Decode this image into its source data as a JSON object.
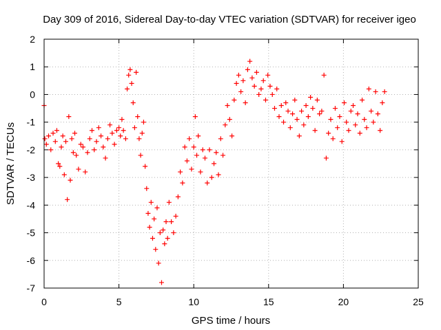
{
  "chart_data": {
    "type": "scatter",
    "title": "Day 309 of 2016, Sidereal Day-to-day VTEC variation (SDTVAR) for receiver igeo",
    "xlabel": "GPS time / hours",
    "ylabel": "SDTVAR / TECUs",
    "xlim": [
      0,
      25
    ],
    "ylim": [
      -7,
      2
    ],
    "xticks": [
      0,
      5,
      10,
      15,
      20,
      25
    ],
    "yticks": [
      -7,
      -6,
      -5,
      -4,
      -3,
      -2,
      -1,
      0,
      1,
      2
    ],
    "grid": true,
    "marker": "plus",
    "color": "#ff0000",
    "series": [
      {
        "name": "SDTVAR",
        "x": [
          0.0,
          0.05,
          0.15,
          0.3,
          0.45,
          0.6,
          0.75,
          0.85,
          0.95,
          1.05,
          1.15,
          1.25,
          1.35,
          1.45,
          1.55,
          1.65,
          1.75,
          1.85,
          1.95,
          2.05,
          2.15,
          2.3,
          2.45,
          2.6,
          2.75,
          2.9,
          3.05,
          3.2,
          3.35,
          3.5,
          3.65,
          3.8,
          3.95,
          4.1,
          4.25,
          4.4,
          4.55,
          4.7,
          4.85,
          5.0,
          5.1,
          5.2,
          5.3,
          5.45,
          5.55,
          5.65,
          5.75,
          5.85,
          5.95,
          6.05,
          6.15,
          6.25,
          6.35,
          6.45,
          6.55,
          6.65,
          6.75,
          6.85,
          6.95,
          7.05,
          7.15,
          7.25,
          7.35,
          7.45,
          7.55,
          7.65,
          7.75,
          7.85,
          7.95,
          8.05,
          8.15,
          8.25,
          8.35,
          8.5,
          8.65,
          8.8,
          8.95,
          9.1,
          9.25,
          9.4,
          9.55,
          9.7,
          9.85,
          10.0,
          10.1,
          10.2,
          10.3,
          10.45,
          10.6,
          10.75,
          10.9,
          11.05,
          11.2,
          11.35,
          11.5,
          11.65,
          11.8,
          11.95,
          12.1,
          12.25,
          12.4,
          12.55,
          12.7,
          12.85,
          13.0,
          13.15,
          13.3,
          13.45,
          13.6,
          13.75,
          13.9,
          14.05,
          14.2,
          14.35,
          14.5,
          14.65,
          14.8,
          14.95,
          15.1,
          15.25,
          15.4,
          15.55,
          15.7,
          15.85,
          16.0,
          16.15,
          16.3,
          16.45,
          16.6,
          16.75,
          16.9,
          17.05,
          17.2,
          17.35,
          17.5,
          17.65,
          17.8,
          17.95,
          18.1,
          18.25,
          18.4,
          18.55,
          18.7,
          18.85,
          19.0,
          19.15,
          19.3,
          19.45,
          19.6,
          19.75,
          19.9,
          20.05,
          20.2,
          20.35,
          20.5,
          20.65,
          20.8,
          20.95,
          21.1,
          21.25,
          21.4,
          21.55,
          21.7,
          21.85,
          22.0,
          22.15,
          22.3,
          22.45,
          22.6,
          22.75
        ],
        "y": [
          -0.4,
          -1.6,
          -1.8,
          -1.5,
          -2.0,
          -1.4,
          -1.7,
          -1.3,
          -2.5,
          -2.6,
          -1.9,
          -1.5,
          -2.9,
          -1.7,
          -3.8,
          -0.8,
          -3.1,
          -1.6,
          -2.1,
          -1.4,
          -2.2,
          -2.7,
          -1.8,
          -1.9,
          -2.8,
          -2.1,
          -1.6,
          -1.3,
          -2.0,
          -1.7,
          -1.2,
          -1.5,
          -1.9,
          -2.3,
          -1.6,
          -1.1,
          -1.4,
          -1.8,
          -1.3,
          -1.2,
          -1.5,
          -0.9,
          -1.3,
          -1.6,
          0.2,
          0.7,
          0.9,
          0.4,
          -0.3,
          -1.2,
          0.8,
          -0.8,
          -1.6,
          -2.2,
          -1.4,
          -1.0,
          -2.6,
          -3.4,
          -4.3,
          -4.8,
          -3.9,
          -5.2,
          -4.5,
          -5.6,
          -4.1,
          -6.1,
          -5.0,
          -6.8,
          -4.9,
          -5.4,
          -4.6,
          -5.2,
          -3.9,
          -4.6,
          -5.0,
          -4.4,
          -3.7,
          -2.8,
          -3.2,
          -1.9,
          -2.4,
          -1.6,
          -2.7,
          -1.9,
          -0.8,
          -2.2,
          -1.5,
          -2.8,
          -2.0,
          -2.3,
          -3.2,
          -2.0,
          -3.0,
          -2.5,
          -2.1,
          -2.9,
          -1.6,
          -2.2,
          -1.1,
          -0.4,
          -0.9,
          -1.5,
          -0.2,
          0.4,
          0.7,
          0.1,
          0.5,
          -0.3,
          0.9,
          1.2,
          0.6,
          0.3,
          0.8,
          0.0,
          0.2,
          0.5,
          -0.2,
          0.7,
          0.3,
          0.0,
          -0.5,
          0.2,
          -0.8,
          -0.4,
          -1.0,
          -0.3,
          -0.6,
          -1.2,
          -0.7,
          -0.2,
          -0.9,
          -1.5,
          -0.6,
          -1.1,
          -0.4,
          -0.8,
          -0.1,
          -0.5,
          -1.3,
          -0.2,
          -0.7,
          -0.6,
          0.7,
          -2.3,
          -1.4,
          -0.9,
          -1.6,
          -0.5,
          -1.2,
          -0.8,
          -1.7,
          -0.3,
          -1.0,
          -1.3,
          -0.6,
          -0.4,
          -1.1,
          -0.7,
          -1.4,
          -0.2,
          -0.9,
          -1.2,
          0.2,
          -0.6,
          -1.0,
          0.1,
          -0.7,
          -1.3,
          -0.3,
          0.1
        ]
      }
    ]
  }
}
